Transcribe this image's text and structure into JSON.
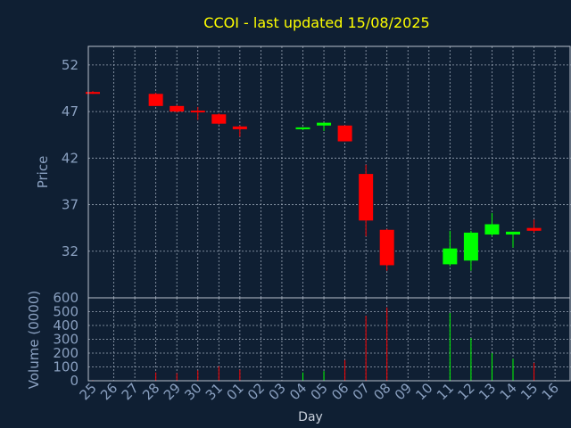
{
  "chart_data": [
    {
      "type": "candlestick",
      "title": "CCOI - last updated 15/08/2025",
      "ylabel": "Price",
      "ylim": [
        27,
        54
      ],
      "yticks": [
        32,
        37,
        42,
        47,
        52
      ],
      "grid": true,
      "colors": {
        "up": "#00ff00",
        "down": "#ff0000",
        "background": "#0f1f33",
        "text": "#8aa0c0",
        "title": "#ffff00"
      },
      "categories": [
        "25",
        "26",
        "27",
        "28",
        "29",
        "30",
        "31",
        "01",
        "02",
        "03",
        "04",
        "05",
        "06",
        "07",
        "08",
        "09",
        "10",
        "11",
        "12",
        "13",
        "14",
        "15",
        "16"
      ],
      "candles": [
        {
          "x": "25",
          "open": 49.1,
          "high": 49.2,
          "low": 48.9,
          "close": 48.9
        },
        {
          "x": "28",
          "open": 48.9,
          "high": 49.0,
          "low": 47.6,
          "close": 47.6
        },
        {
          "x": "29",
          "open": 47.6,
          "high": 47.7,
          "low": 46.9,
          "close": 47.0
        },
        {
          "x": "30",
          "open": 47.1,
          "high": 47.5,
          "low": 46.1,
          "close": 47.0
        },
        {
          "x": "31",
          "open": 46.7,
          "high": 46.8,
          "low": 45.6,
          "close": 45.7
        },
        {
          "x": "01",
          "open": 45.4,
          "high": 45.5,
          "low": 44.3,
          "close": 45.1
        },
        {
          "x": "04",
          "open": 45.1,
          "high": 45.3,
          "low": 45.0,
          "close": 45.3
        },
        {
          "x": "05",
          "open": 45.5,
          "high": 45.8,
          "low": 44.9,
          "close": 45.8
        },
        {
          "x": "06",
          "open": 45.5,
          "high": 45.5,
          "low": 43.8,
          "close": 43.8
        },
        {
          "x": "07",
          "open": 40.3,
          "high": 41.3,
          "low": 33.6,
          "close": 35.3
        },
        {
          "x": "08",
          "open": 34.3,
          "high": 34.4,
          "low": 29.9,
          "close": 30.5
        },
        {
          "x": "11",
          "open": 30.6,
          "high": 34.2,
          "low": 30.4,
          "close": 32.3
        },
        {
          "x": "12",
          "open": 31.0,
          "high": 34.2,
          "low": 29.9,
          "close": 34.0
        },
        {
          "x": "13",
          "open": 33.8,
          "high": 36.1,
          "low": 33.6,
          "close": 34.9
        },
        {
          "x": "14",
          "open": 33.8,
          "high": 34.1,
          "low": 32.4,
          "close": 34.1
        },
        {
          "x": "15",
          "open": 34.5,
          "high": 35.4,
          "low": 34.0,
          "close": 34.2
        }
      ]
    },
    {
      "type": "bar",
      "ylabel": "Volume (0000)",
      "xlabel": "Day",
      "ylim": [
        0,
        600
      ],
      "yticks": [
        0,
        100,
        200,
        300,
        400,
        500,
        600
      ],
      "grid": true,
      "categories": [
        "25",
        "26",
        "27",
        "28",
        "29",
        "30",
        "31",
        "01",
        "02",
        "03",
        "04",
        "05",
        "06",
        "07",
        "08",
        "09",
        "10",
        "11",
        "12",
        "13",
        "14",
        "15",
        "16"
      ],
      "bars": [
        {
          "x": "25",
          "value": 5,
          "direction": "down"
        },
        {
          "x": "28",
          "value": 60,
          "direction": "down"
        },
        {
          "x": "29",
          "value": 55,
          "direction": "down"
        },
        {
          "x": "30",
          "value": 75,
          "direction": "down"
        },
        {
          "x": "31",
          "value": 105,
          "direction": "down"
        },
        {
          "x": "01",
          "value": 80,
          "direction": "down"
        },
        {
          "x": "04",
          "value": 60,
          "direction": "up"
        },
        {
          "x": "05",
          "value": 70,
          "direction": "up"
        },
        {
          "x": "06",
          "value": 150,
          "direction": "down"
        },
        {
          "x": "07",
          "value": 470,
          "direction": "down"
        },
        {
          "x": "08",
          "value": 530,
          "direction": "down"
        },
        {
          "x": "11",
          "value": 490,
          "direction": "up"
        },
        {
          "x": "12",
          "value": 310,
          "direction": "up"
        },
        {
          "x": "13",
          "value": 200,
          "direction": "up"
        },
        {
          "x": "14",
          "value": 160,
          "direction": "up"
        },
        {
          "x": "15",
          "value": 130,
          "direction": "down"
        }
      ]
    }
  ]
}
